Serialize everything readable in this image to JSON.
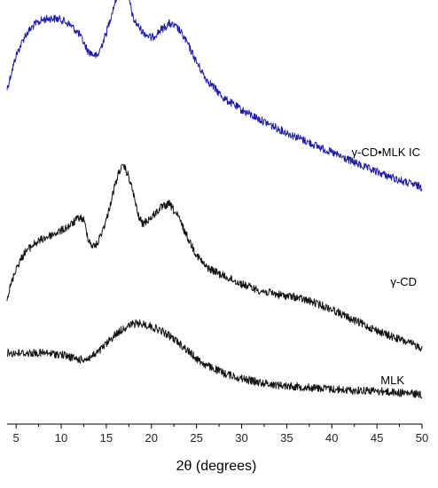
{
  "chart_data": {
    "type": "line",
    "title": "",
    "xlabel": "2θ (degrees)",
    "ylabel": "",
    "xlim": [
      4,
      50
    ],
    "xticks": [
      5,
      10,
      15,
      20,
      25,
      30,
      35,
      40,
      45,
      50
    ],
    "grid": false,
    "legend": "none",
    "series": [
      {
        "name": "γ-CD•MLK IC",
        "color": "#1c1ca8",
        "x": [
          4,
          5,
          6,
          7,
          8,
          9,
          10,
          11,
          12,
          13,
          14,
          15,
          16,
          16.5,
          17,
          17.5,
          18,
          19,
          20,
          21,
          22,
          23,
          24,
          25,
          26,
          28,
          30,
          32,
          34,
          36,
          38,
          40,
          42,
          44,
          46,
          48,
          50
        ],
        "values": [
          1.0,
          1.25,
          1.4,
          1.48,
          1.52,
          1.53,
          1.52,
          1.48,
          1.41,
          1.28,
          1.24,
          1.42,
          1.66,
          1.75,
          1.77,
          1.68,
          1.52,
          1.43,
          1.38,
          1.44,
          1.49,
          1.45,
          1.34,
          1.2,
          1.08,
          0.93,
          0.84,
          0.77,
          0.7,
          0.64,
          0.58,
          0.52,
          0.46,
          0.4,
          0.35,
          0.3,
          0.26
        ]
      },
      {
        "name": "γ-CD",
        "color": "#111111",
        "x": [
          4,
          5,
          6,
          7,
          8,
          9,
          10,
          11,
          12,
          12.5,
          13,
          13.5,
          14,
          15,
          16,
          16.5,
          17,
          17.5,
          18,
          18.5,
          19,
          20,
          21,
          22,
          23,
          24,
          25,
          26,
          28,
          30,
          32,
          34,
          36,
          38,
          40,
          42,
          44,
          46,
          48,
          50
        ],
        "values": [
          0.4,
          0.62,
          0.74,
          0.8,
          0.84,
          0.87,
          0.9,
          0.94,
          1.0,
          0.98,
          0.84,
          0.78,
          0.8,
          0.98,
          1.25,
          1.36,
          1.38,
          1.3,
          1.18,
          1.02,
          0.95,
          1.0,
          1.07,
          1.1,
          1.0,
          0.85,
          0.72,
          0.63,
          0.56,
          0.5,
          0.45,
          0.42,
          0.4,
          0.36,
          0.31,
          0.24,
          0.18,
          0.12,
          0.07,
          0.02
        ]
      },
      {
        "name": "MLK",
        "color": "#111111",
        "x": [
          4,
          6,
          8,
          10,
          11,
          12,
          13,
          14,
          15,
          16,
          17,
          18,
          19,
          20,
          21,
          22,
          23,
          24,
          25,
          26,
          28,
          30,
          32,
          34,
          36,
          38,
          40,
          42,
          44,
          46,
          48,
          50
        ],
        "values": [
          0.3,
          0.3,
          0.3,
          0.29,
          0.27,
          0.25,
          0.26,
          0.3,
          0.37,
          0.44,
          0.49,
          0.52,
          0.52,
          0.5,
          0.47,
          0.43,
          0.38,
          0.32,
          0.26,
          0.21,
          0.15,
          0.11,
          0.08,
          0.06,
          0.05,
          0.04,
          0.03,
          0.02,
          0.02,
          0.01,
          0.0,
          -0.01
        ]
      }
    ]
  }
}
